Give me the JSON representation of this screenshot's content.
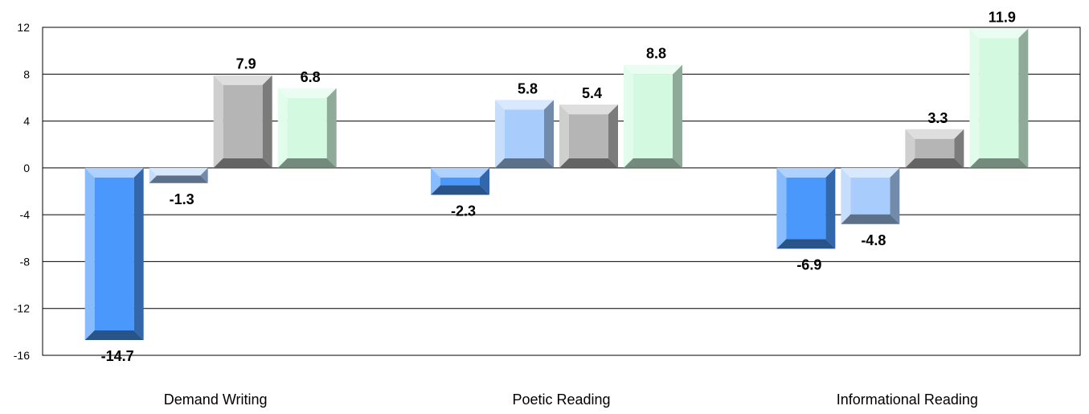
{
  "chart_data": {
    "type": "bar",
    "categories": [
      "Demand Writing",
      "Poetic Reading",
      "Informational Reading"
    ],
    "series": [
      {
        "values": [
          -14.7,
          -2.3,
          -6.9
        ],
        "color": "#4a98fb"
      },
      {
        "values": [
          -1.3,
          5.8,
          -4.8
        ],
        "color": "#a8ccfb"
      },
      {
        "values": [
          7.9,
          5.4,
          3.3
        ],
        "color": "#b5b5b5"
      },
      {
        "values": [
          6.8,
          8.8,
          11.9
        ],
        "color": "#d3fae1"
      }
    ],
    "data_labels": [
      [
        "-14.7",
        "-2.3",
        "-6.9"
      ],
      [
        "-1.3",
        "5.8",
        "-4.8"
      ],
      [
        "7.9",
        "5.4",
        "3.3"
      ],
      [
        "6.8",
        "8.8",
        "11.9"
      ]
    ],
    "ylim": [
      -16,
      12
    ],
    "yticks": [
      12,
      8,
      4,
      0,
      -4,
      -8,
      -12,
      -16
    ],
    "ytick_labels": [
      "12",
      "8",
      "4",
      "0",
      "-4",
      "-8",
      "-12",
      "-16"
    ],
    "grid": true,
    "title": "",
    "xlabel": "",
    "ylabel": ""
  }
}
